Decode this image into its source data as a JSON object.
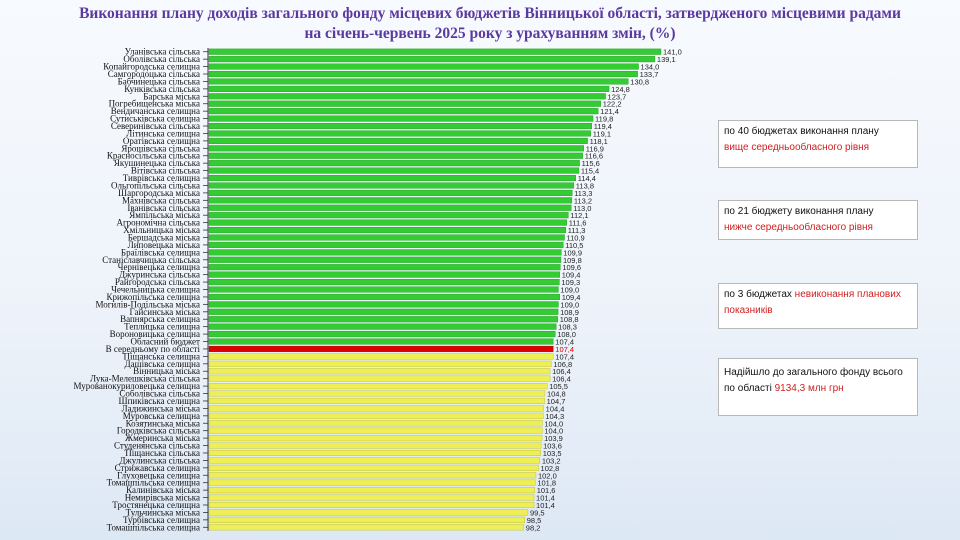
{
  "title": "Виконання плану доходів загального фонду місцевих бюджетів Вінницької області, затвердженого місцевими радами на січень-червень 2025 року з урахуванням змін, (%)",
  "notes": [
    {
      "text": "по 40 бюджетах виконання плану",
      "highlight": "вище середньообласного рівня"
    },
    {
      "text": "по 21 бюджету виконання плану",
      "highlight": "нижче середньообласного рівня"
    },
    {
      "text": "по 3 бюджетах",
      "highlight": "невиконання планових показників"
    },
    {
      "text": "Надійшло до загального фонду всього по області",
      "highlight": "9134,3 млн грн"
    }
  ],
  "colors": {
    "above": "#33cc33",
    "average": "#dd0000",
    "below": "#eeee55"
  },
  "chart_data": {
    "type": "bar",
    "orientation": "horizontal",
    "xlim": [
      0,
      145
    ],
    "categories": [
      "Уланівська сільська",
      "Оболівська сільська",
      "Копайгородська селищна",
      "Самгородоцька сільська",
      "Бабчинецька сільська",
      "Кунківська сільська",
      "Барська міська",
      "Погребищенська міська",
      "Вендичанська селищна",
      "Сутиськівська селищна",
      "Северинівська сільська",
      "Літинська селищна",
      "Оратівська селищна",
      "Ярошівська сільська",
      "Красносільська сільська",
      "Якушинецька сільська",
      "Вітівська сільська",
      "Тиврівська селищна",
      "Ольгопільська сільська",
      "Шаргородська міська",
      "Махнівська сільська",
      "Іванівська сільська",
      "Ямпільська міська",
      "Агрономічна сільська",
      "Хмільницька міська",
      "Бершадська міська",
      "Липовецька міська",
      "Браїлівська селищна",
      "Станіславчицька сільська",
      "Чернівецька селищна",
      "Джуринська сільська",
      "Райгородська сільська",
      "Чечельницька селищна",
      "Крижопільська селищна",
      "Могилів-Подільська міська",
      "Гайсинська міська",
      "Вапнярська селищна",
      "Теплицька селищна",
      "Вороновицька селищна",
      "Обласний бюджет",
      "В середньому по області",
      "Піщанська селищна",
      "Дашівська селищна",
      "Вінницька міська",
      "Лука-Мелешківська сільська",
      "Мурованокуриловецька селищна",
      "Соболівська сільська",
      "Шпиківська селищна",
      "Ладижинська міська",
      "Муровська селищна",
      "Козятинська міська",
      "Городківська сільська",
      "Жмеринська міська",
      "Студенянська сільська",
      "Піщанська сільська",
      "Джулинська сільська",
      "Стрижавська селищна",
      "Глуховецька селищна",
      "Томашпільська селищна",
      "Калинівська міська",
      "Немирівська міська",
      "Тростянецька селищна",
      "Тульчинська міська",
      "Турбівська селищна",
      "Томашпільська селищна"
    ],
    "values": [
      141.0,
      139.1,
      134.0,
      133.7,
      130.8,
      124.8,
      123.7,
      122.2,
      121.4,
      119.8,
      119.4,
      119.1,
      118.1,
      116.9,
      116.6,
      115.6,
      115.4,
      114.4,
      113.8,
      113.3,
      113.2,
      113.0,
      112.1,
      111.6,
      111.3,
      110.9,
      110.5,
      109.9,
      109.8,
      109.6,
      109.4,
      109.3,
      109.0,
      109.4,
      109.0,
      108.9,
      108.8,
      108.3,
      108.0,
      107.4,
      107.4,
      107.4,
      106.8,
      106.4,
      106.4,
      105.5,
      104.8,
      104.7,
      104.4,
      104.3,
      104.0,
      104.0,
      103.9,
      103.6,
      103.5,
      103.2,
      102.8,
      102.0,
      101.8,
      101.6,
      101.4,
      101.4,
      99.5,
      98.5,
      98.2
    ],
    "value_labels": [
      "141,0",
      "139,1",
      "134,0",
      "133,7",
      "130,8",
      "124,8",
      "123,7",
      "122,2",
      "121,4",
      "119,8",
      "119,4",
      "119,1",
      "118,1",
      "116,9",
      "116,6",
      "115,6",
      "115,4",
      "114,4",
      "113,8",
      "113,3",
      "113,2",
      "113,0",
      "112,1",
      "111,6",
      "111,3",
      "110,9",
      "110,5",
      "109,9",
      "109,8",
      "109,6",
      "109,4",
      "109,3",
      "109,0",
      "109,4",
      "109,0",
      "108,9",
      "108,8",
      "108,3",
      "108,0",
      "107,4",
      "107,4",
      "107,4",
      "106,8",
      "106,4",
      "106,4",
      "105,5",
      "104,8",
      "104,7",
      "104,4",
      "104,3",
      "104,0",
      "104,0",
      "103,9",
      "103,6",
      "103,5",
      "103,2",
      "102,8",
      "102,0",
      "101,8",
      "101,6",
      "101,4",
      "101,4",
      "99,5",
      "98,5",
      "98,2"
    ],
    "groups": [
      "above",
      "above",
      "above",
      "above",
      "above",
      "above",
      "above",
      "above",
      "above",
      "above",
      "above",
      "above",
      "above",
      "above",
      "above",
      "above",
      "above",
      "above",
      "above",
      "above",
      "above",
      "above",
      "above",
      "above",
      "above",
      "above",
      "above",
      "above",
      "above",
      "above",
      "above",
      "above",
      "above",
      "above",
      "above",
      "above",
      "above",
      "above",
      "above",
      "above",
      "average",
      "below",
      "below",
      "below",
      "below",
      "below",
      "below",
      "below",
      "below",
      "below",
      "below",
      "below",
      "below",
      "below",
      "below",
      "below",
      "below",
      "below",
      "below",
      "below",
      "below",
      "below",
      "below",
      "below",
      "below"
    ]
  }
}
